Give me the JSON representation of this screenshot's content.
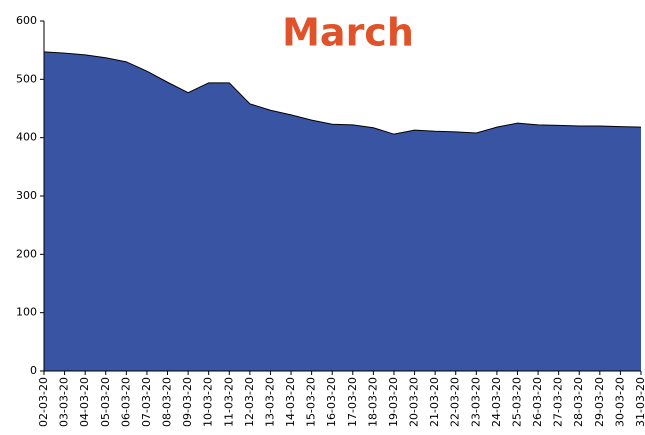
{
  "chart_data": {
    "type": "area",
    "title": "March",
    "categories": [
      "02-03-20",
      "03-03-20",
      "04-03-20",
      "05-03-20",
      "06-03-20",
      "07-03-20",
      "08-03-20",
      "09-03-20",
      "10-03-20",
      "11-03-20",
      "12-03-20",
      "13-03-20",
      "14-03-20",
      "15-03-20",
      "16-03-20",
      "17-03-20",
      "18-03-20",
      "19-03-20",
      "20-03-20",
      "21-03-20",
      "22-03-20",
      "23-03-20",
      "24-03-20",
      "25-03-20",
      "26-03-20",
      "27-03-20",
      "28-03-20",
      "29-03-20",
      "30-03-20",
      "31-03-20"
    ],
    "values": [
      547,
      545,
      542,
      537,
      530,
      514,
      495,
      477,
      494,
      494,
      458,
      447,
      439,
      430,
      423,
      422,
      417,
      406,
      413,
      411,
      410,
      408,
      418,
      425,
      422,
      421,
      420,
      420,
      419,
      418
    ],
    "color": "#3a54a4",
    "ylim": [
      0,
      600
    ],
    "yticks": [
      0,
      100,
      200,
      300,
      400,
      500,
      600
    ]
  }
}
